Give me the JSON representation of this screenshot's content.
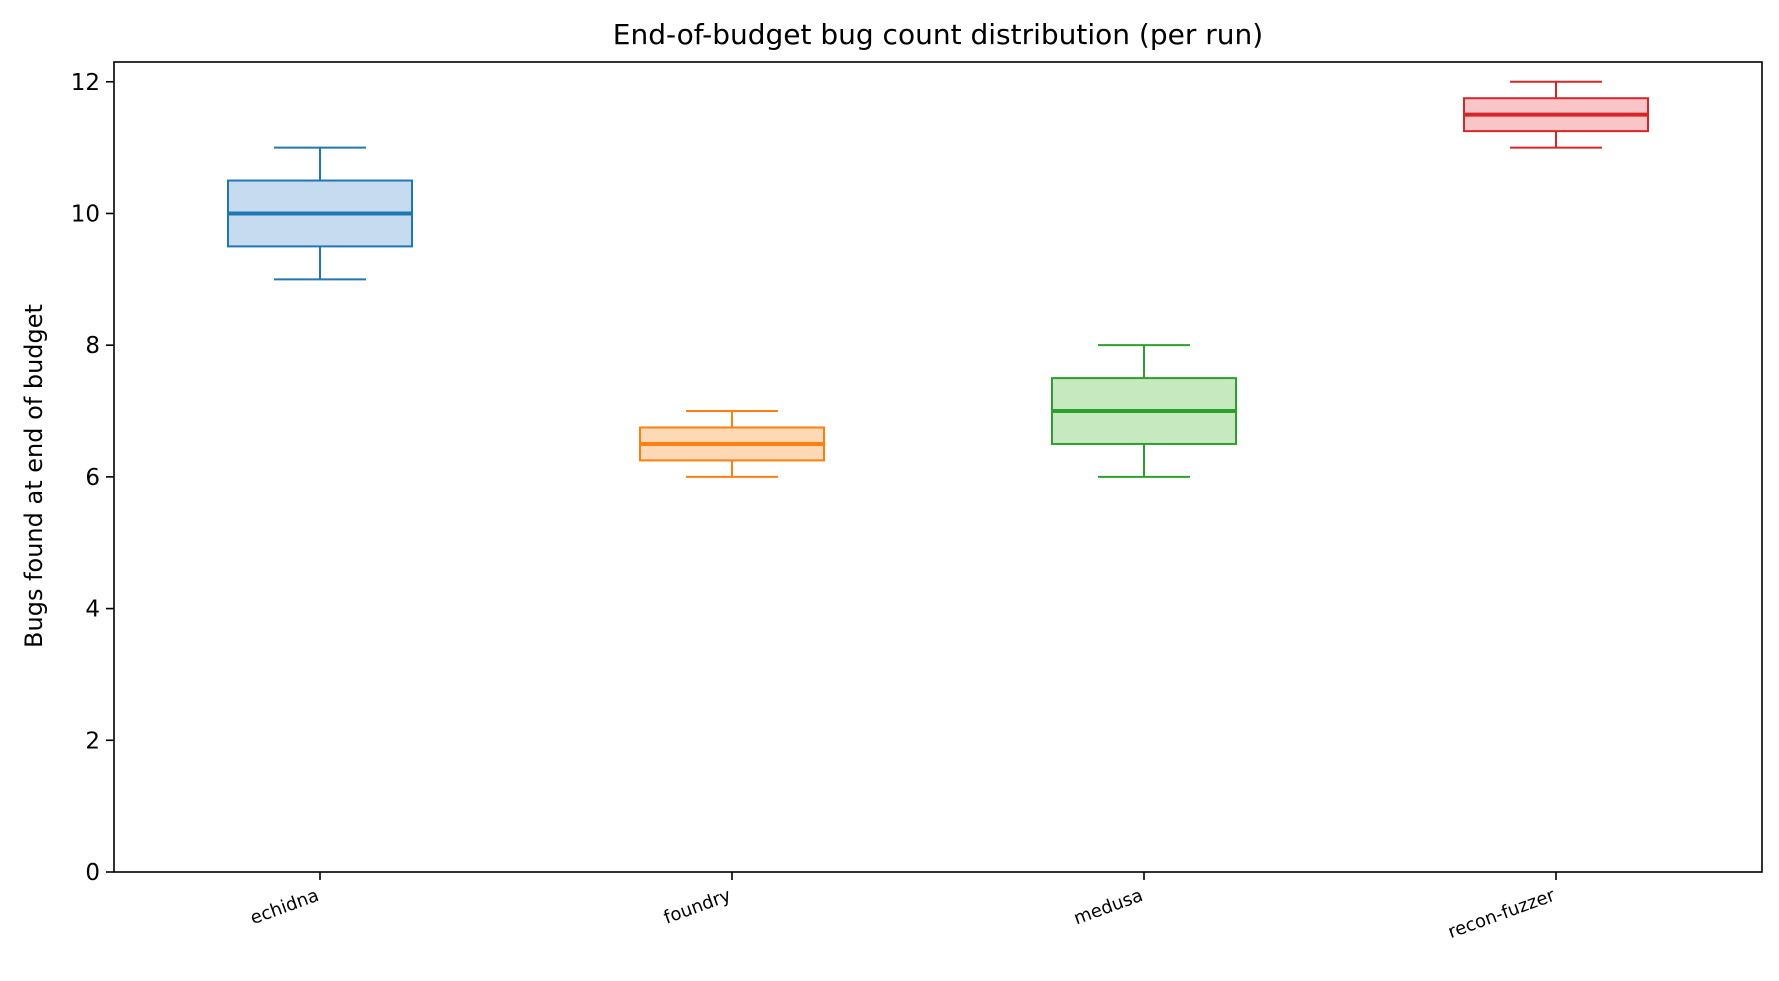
{
  "chart_data": {
    "type": "box",
    "title": "End-of-budget bug count distribution (per run)",
    "xlabel": "",
    "ylabel": "Bugs found at end of budget",
    "ylim": [
      0,
      12.3
    ],
    "yticks": [
      0,
      2,
      4,
      6,
      8,
      10,
      12
    ],
    "grid": false,
    "categories": [
      "echidna",
      "foundry",
      "medusa",
      "recon-fuzzer"
    ],
    "boxes": [
      {
        "category": "echidna",
        "min": 9,
        "q1": 9.5,
        "median": 10,
        "q3": 10.5,
        "max": 11,
        "color": "#1f77b4",
        "fill": "#c6dbef"
      },
      {
        "category": "foundry",
        "min": 6,
        "q1": 6.25,
        "median": 6.5,
        "q3": 6.75,
        "max": 7,
        "color": "#ff7f0e",
        "fill": "#fdd9b5"
      },
      {
        "category": "medusa",
        "min": 6,
        "q1": 6.5,
        "median": 7,
        "q3": 7.5,
        "max": 8,
        "color": "#2ca02c",
        "fill": "#c7e9c0"
      },
      {
        "category": "recon-fuzzer",
        "min": 11,
        "q1": 11.25,
        "median": 11.5,
        "q3": 11.75,
        "max": 12,
        "color": "#d62728",
        "fill": "#f9c5c7"
      }
    ]
  }
}
